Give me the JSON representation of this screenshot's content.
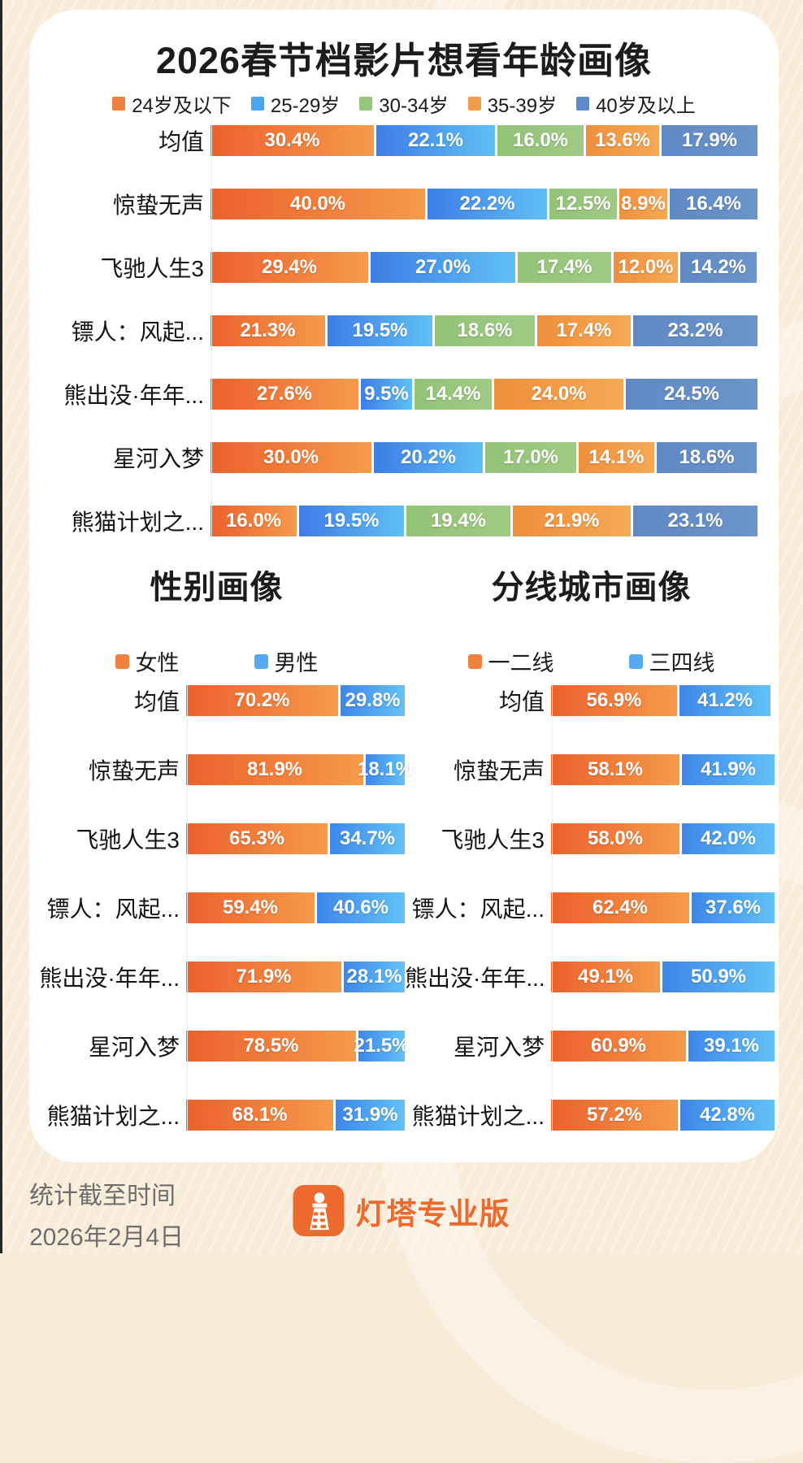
{
  "chart_data": [
    {
      "type": "bar",
      "subtype": "horizontal-stacked",
      "title": "2026春节档影片想看年龄画像",
      "value_format": "percent",
      "legend_position": "top",
      "categories": [
        "均值",
        "惊蛰无声",
        "飞驰人生3",
        "镖人：风起...",
        "熊出没·年年...",
        "星河入梦",
        "熊猫计划之..."
      ],
      "series": [
        {
          "name": "24岁及以下",
          "values": [
            30.4,
            40.0,
            29.4,
            21.3,
            27.6,
            30.0,
            16.0
          ]
        },
        {
          "name": "25-29岁",
          "values": [
            22.1,
            22.2,
            27.0,
            19.5,
            9.5,
            20.2,
            19.5
          ]
        },
        {
          "name": "30-34岁",
          "values": [
            16.0,
            12.5,
            17.4,
            18.6,
            14.4,
            17.0,
            19.4
          ]
        },
        {
          "name": "35-39岁",
          "values": [
            13.6,
            8.9,
            12.0,
            17.4,
            24.0,
            14.1,
            21.9
          ]
        },
        {
          "name": "40岁及以上",
          "values": [
            17.9,
            16.4,
            14.2,
            23.2,
            24.5,
            18.6,
            23.1
          ]
        }
      ]
    },
    {
      "type": "bar",
      "subtype": "horizontal-stacked",
      "title": "性别画像",
      "value_format": "percent",
      "legend_position": "top",
      "categories": [
        "均值",
        "惊蛰无声",
        "飞驰人生3",
        "镖人：风起...",
        "熊出没·年年...",
        "星河入梦",
        "熊猫计划之..."
      ],
      "series": [
        {
          "name": "女性",
          "values": [
            70.2,
            81.9,
            65.3,
            59.4,
            71.9,
            78.5,
            68.1
          ]
        },
        {
          "name": "男性",
          "values": [
            29.8,
            18.1,
            34.7,
            40.6,
            28.1,
            21.5,
            31.9
          ]
        }
      ]
    },
    {
      "type": "bar",
      "subtype": "horizontal-stacked",
      "title": "分线城市画像",
      "value_format": "percent",
      "legend_position": "top",
      "categories": [
        "均值",
        "惊蛰无声",
        "飞驰人生3",
        "镖人：风起...",
        "熊出没·年年...",
        "星河入梦",
        "熊猫计划之..."
      ],
      "series": [
        {
          "name": "一二线",
          "values": [
            56.9,
            58.1,
            58.0,
            62.4,
            49.1,
            60.9,
            57.2
          ]
        },
        {
          "name": "三四线",
          "values": [
            41.2,
            41.9,
            42.0,
            37.6,
            50.9,
            39.1,
            42.8
          ]
        }
      ]
    }
  ],
  "style": {
    "page_bg": "#f8ecd8",
    "card_bg": "#ffffff",
    "brand_color": "#ec6a2e",
    "age_series_colors": [
      {
        "from": "#ec602c",
        "to": "#f59b4b",
        "legend": "#f0813f"
      },
      {
        "from": "#3e7de6",
        "to": "#5fc0f4",
        "legend": "#4ca3ef"
      },
      {
        "from": "#92c377",
        "to": "#a0ca84",
        "legend": "#97c57e"
      },
      {
        "from": "#ee8f3d",
        "to": "#f6a953",
        "legend": "#f09c49"
      },
      {
        "from": "#6089c4",
        "to": "#6b94cb",
        "legend": "#5d8dc9"
      }
    ],
    "duo_series_colors": [
      {
        "from": "#ec602c",
        "to": "#f59b4b",
        "legend": "#f0813f"
      },
      {
        "from": "#3e86e9",
        "to": "#62c2f6",
        "legend": "#54a9f2"
      }
    ]
  },
  "footer": {
    "stat_label": "统计截至时间",
    "stat_date": "2026年2月4日",
    "brand_name": "灯塔专业版"
  }
}
